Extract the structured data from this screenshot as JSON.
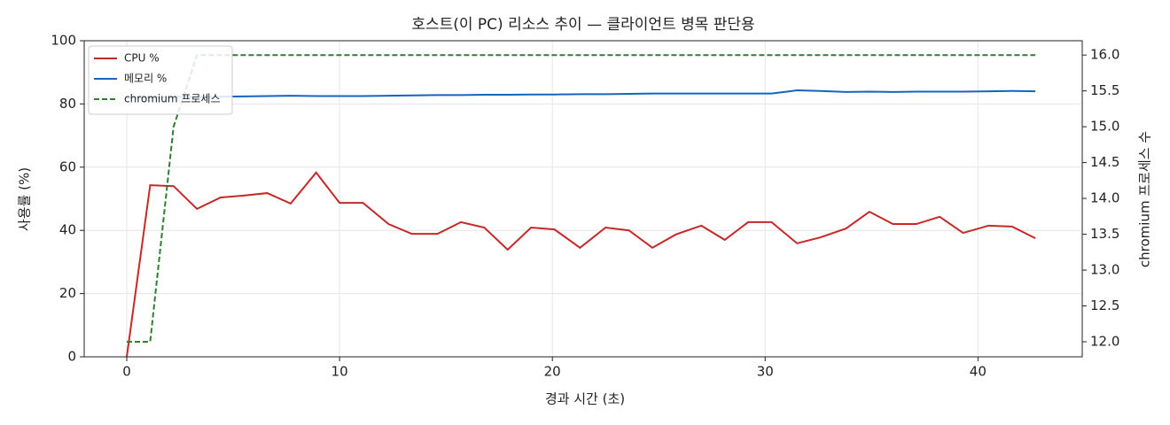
{
  "chart_data": {
    "type": "line",
    "title": "호스트(이 PC) 리소스 추이 — 클라이언트 병목 판단용",
    "xlabel": "경과 시간 (초)",
    "ylabel": "사용률 (%)",
    "y2label": "chromium 프로세스 수",
    "x": [
      0,
      1.1,
      2.2,
      3.3,
      4.4,
      5.5,
      6.6,
      7.7,
      8.9,
      10.0,
      11.1,
      12.3,
      13.4,
      14.6,
      15.7,
      16.8,
      17.9,
      19.0,
      20.1,
      21.3,
      22.5,
      23.6,
      24.7,
      25.8,
      27.0,
      28.1,
      29.2,
      30.3,
      31.5,
      32.6,
      33.8,
      34.9,
      36.0,
      37.1,
      38.2,
      39.3,
      40.5,
      41.6,
      42.7
    ],
    "series": [
      {
        "name": "CPU %",
        "color": "#c62828",
        "values": [
          0,
          54.3,
          54,
          46.8,
          50.4,
          51,
          51.8,
          48.5,
          58.3,
          48.7,
          48.7,
          42,
          38.9,
          38.9,
          42.6,
          40.9,
          33.9,
          40.9,
          40.3,
          34.5,
          40.9,
          40,
          34.5,
          38.7,
          41.5,
          37,
          42.6,
          42.6,
          35.9,
          37.8,
          40.6,
          45.9,
          42,
          42,
          44.3,
          39.2,
          41.5,
          41.2,
          37.5
        ]
      },
      {
        "name": "메모리 %",
        "color": "#1565c0",
        "values": [
          82.0,
          82.1,
          82.2,
          82.2,
          82.3,
          82.4,
          82.5,
          82.6,
          82.5,
          82.5,
          82.5,
          82.6,
          82.7,
          82.8,
          82.8,
          82.9,
          82.9,
          83.0,
          83.0,
          83.1,
          83.1,
          83.2,
          83.3,
          83.3,
          83.3,
          83.3,
          83.3,
          83.3,
          84.3,
          84.1,
          83.8,
          83.9,
          83.8,
          83.9,
          83.9,
          83.9,
          84.0,
          84.1,
          84.0
        ]
      },
      {
        "name": "chromium 프로세스",
        "color": "#2e7d32",
        "linestyle": "dashed",
        "axis": "y2",
        "values": [
          12,
          12,
          15,
          16,
          16,
          16,
          16,
          16,
          16,
          16,
          16,
          16,
          16,
          16,
          16,
          16,
          16,
          16,
          16,
          16,
          16,
          16,
          16,
          16,
          16,
          16,
          16,
          16,
          16,
          16,
          16,
          16,
          16,
          16,
          16,
          16,
          16,
          16,
          16
        ]
      }
    ],
    "xlim": [
      -2,
      44.9
    ],
    "xticks": [
      0,
      10,
      20,
      30,
      40
    ],
    "ylim": [
      0,
      100
    ],
    "yticks": [
      0,
      20,
      40,
      60,
      80,
      100
    ],
    "y2lim": [
      11.79,
      16.2
    ],
    "y2ticks": [
      {
        "value": 12,
        "label": "12.0"
      },
      {
        "value": 12.5,
        "label": "12.5"
      },
      {
        "value": 13,
        "label": "13.0"
      },
      {
        "value": 13.5,
        "label": "13.5"
      },
      {
        "value": 14,
        "label": "14.0"
      },
      {
        "value": 14.5,
        "label": "14.5"
      },
      {
        "value": 15,
        "label": "15.0"
      },
      {
        "value": 15.5,
        "label": "15.5"
      },
      {
        "value": 16,
        "label": "16.0"
      }
    ],
    "grid": true,
    "legend": "upper-left"
  }
}
